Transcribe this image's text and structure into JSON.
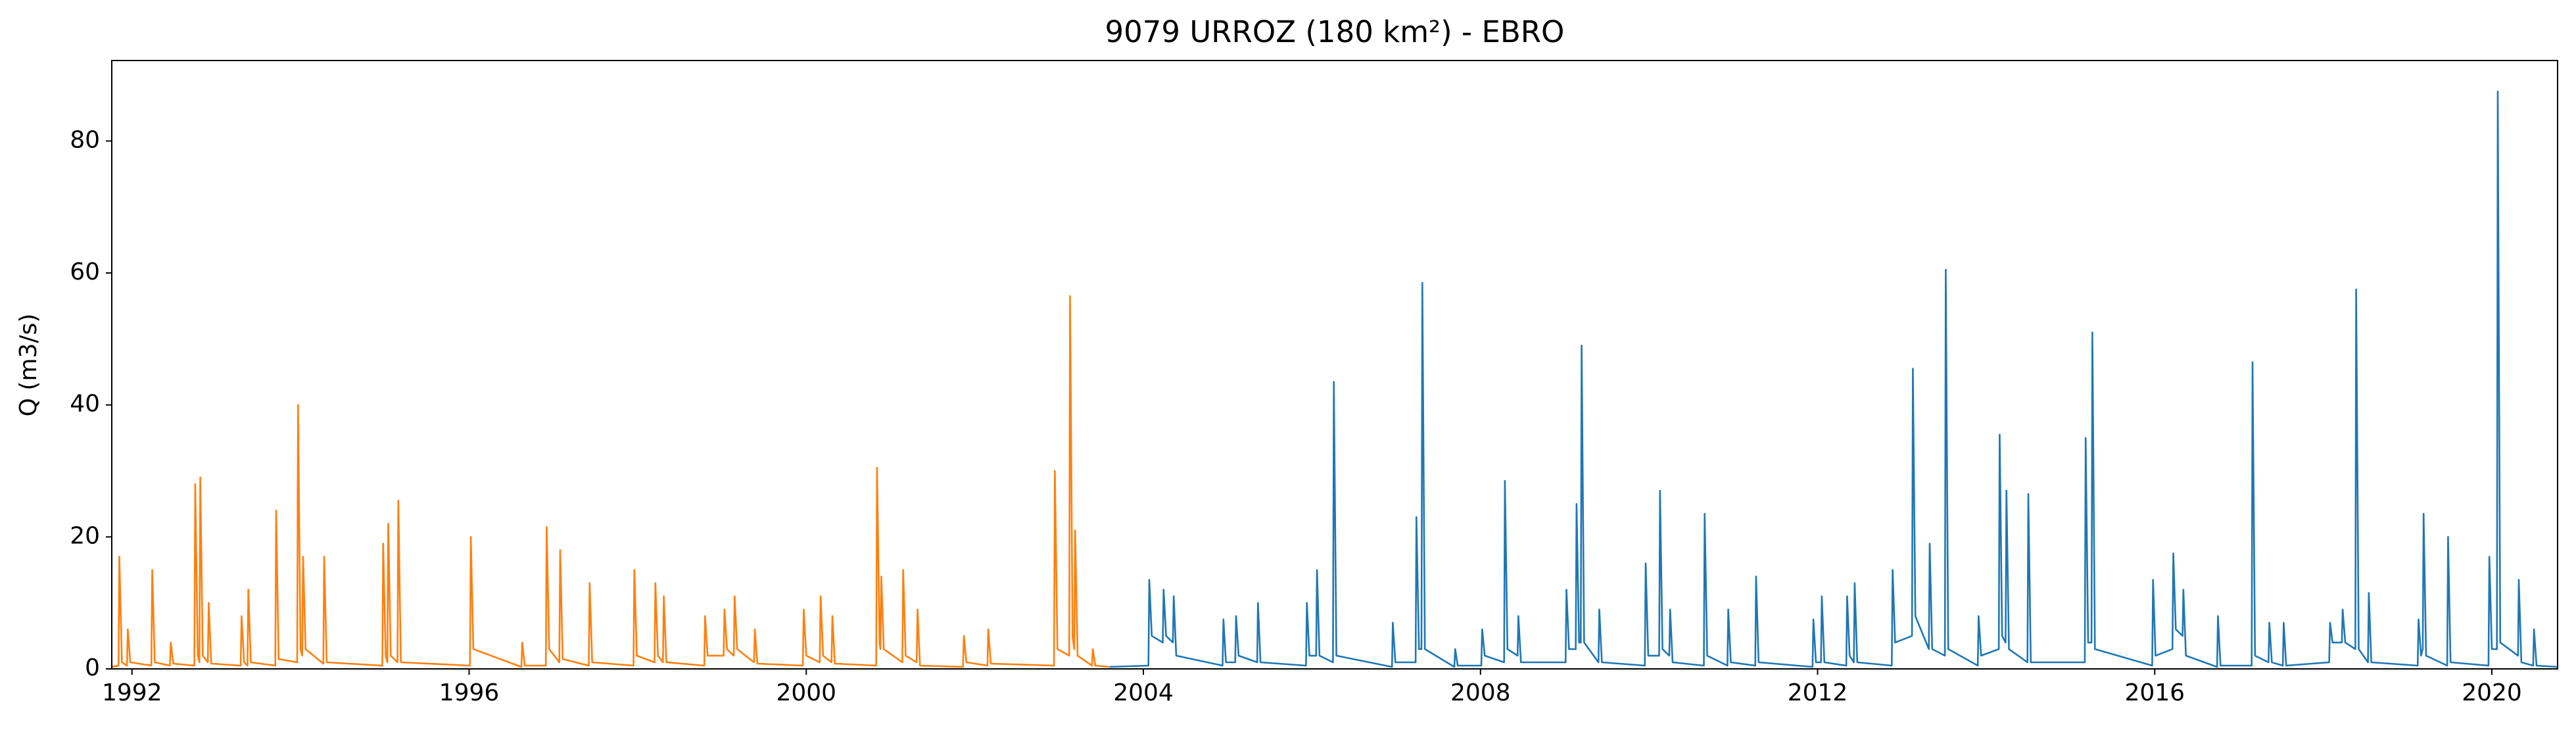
{
  "chart_data": {
    "type": "line",
    "title": "9079 URROZ (180 km²) - EBRO",
    "ylabel": "Q (m3/s)",
    "xlim": [
      1991.76,
      2020.78
    ],
    "ylim": [
      0,
      92.2
    ],
    "xticks": [
      1992,
      1996,
      2000,
      2004,
      2008,
      2012,
      2016,
      2020
    ],
    "yticks": [
      0,
      20,
      40,
      60,
      80
    ],
    "grid": false,
    "series": [
      {
        "color": "#ff7f0e",
        "x": [
          1991.76,
          1991.84,
          1991.85,
          1991.88,
          1991.94,
          1991.95,
          1991.98,
          1992.23,
          1992.24,
          1992.27,
          1992.45,
          1992.46,
          1992.49,
          1992.74,
          1992.75,
          1992.78,
          1992.8,
          1992.81,
          1992.84,
          1992.9,
          1992.91,
          1992.94,
          1993.29,
          1993.3,
          1993.33,
          1993.37,
          1993.38,
          1993.41,
          1993.7,
          1993.71,
          1993.74,
          1993.96,
          1993.97,
          1994.0,
          1994.02,
          1994.03,
          1994.06,
          1994.27,
          1994.28,
          1994.31,
          1994.97,
          1994.98,
          1995.01,
          1995.03,
          1995.04,
          1995.07,
          1995.15,
          1995.16,
          1995.19,
          1996.01,
          1996.02,
          1996.05,
          1996.62,
          1996.63,
          1996.66,
          1996.91,
          1996.92,
          1996.95,
          1997.07,
          1997.08,
          1997.11,
          1997.42,
          1997.43,
          1997.46,
          1997.95,
          1997.96,
          1997.99,
          1998.2,
          1998.21,
          1998.24,
          1998.3,
          1998.31,
          1998.34,
          1998.79,
          1998.8,
          1998.83,
          1999.02,
          1999.03,
          1999.06,
          1999.14,
          1999.15,
          1999.18,
          1999.38,
          1999.39,
          1999.42,
          1999.96,
          1999.97,
          2000.0,
          2000.16,
          2000.17,
          2000.2,
          2000.3,
          2000.31,
          2000.34,
          2000.83,
          2000.84,
          2000.87,
          2000.88,
          2000.89,
          2000.92,
          2001.14,
          2001.15,
          2001.18,
          2001.31,
          2001.32,
          2001.35,
          2001.86,
          2001.87,
          2001.9,
          2002.15,
          2002.16,
          2002.19,
          2002.94,
          2002.95,
          2002.98,
          2003.12,
          2003.13,
          2003.16,
          2003.18,
          2003.19,
          2003.22,
          2003.39,
          2003.4,
          2003.43,
          2003.6
        ],
        "values": [
          0.3,
          0.5,
          17,
          1,
          0.5,
          6,
          1,
          0.5,
          15,
          1,
          0.5,
          4,
          0.8,
          0.5,
          28,
          2,
          1,
          29,
          2,
          1,
          10,
          0.8,
          0.5,
          8,
          1,
          0.5,
          12,
          1,
          0.5,
          24,
          1.5,
          1,
          40,
          3,
          2,
          17,
          3,
          0.8,
          17,
          1,
          0.5,
          19,
          2,
          1,
          22,
          2,
          1,
          25.5,
          1,
          0.5,
          20,
          3,
          0.3,
          4,
          0.5,
          0.5,
          21.5,
          3,
          1,
          18,
          1.5,
          0.5,
          13,
          1,
          0.5,
          15,
          2,
          1,
          13,
          2,
          1,
          11,
          1,
          0.5,
          8,
          2,
          2,
          9,
          3,
          2,
          11,
          3,
          1,
          6,
          0.8,
          0.5,
          9,
          2,
          1,
          11,
          2,
          1,
          8,
          0.8,
          0.5,
          30.5,
          4,
          3,
          14,
          3,
          1,
          15,
          2,
          1,
          9,
          0.5,
          0.3,
          5,
          1,
          0.5,
          6,
          0.8,
          0.5,
          30,
          3,
          2,
          56.5,
          5,
          3,
          21,
          2,
          0.5,
          3,
          0.5,
          0.3
        ]
      },
      {
        "color": "#1f77b4",
        "x": [
          2003.6,
          2004.06,
          2004.07,
          2004.1,
          2004.23,
          2004.24,
          2004.27,
          2004.35,
          2004.36,
          2004.39,
          2004.94,
          2004.95,
          2004.98,
          2005.09,
          2005.1,
          2005.13,
          2005.35,
          2005.36,
          2005.39,
          2005.93,
          2005.94,
          2005.97,
          2006.05,
          2006.06,
          2006.09,
          2006.25,
          2006.26,
          2006.29,
          2006.95,
          2006.96,
          2006.99,
          2007.23,
          2007.24,
          2007.27,
          2007.3,
          2007.31,
          2007.34,
          2007.69,
          2007.7,
          2007.73,
          2008.01,
          2008.02,
          2008.05,
          2008.28,
          2008.29,
          2008.32,
          2008.44,
          2008.45,
          2008.48,
          2009.01,
          2009.02,
          2009.05,
          2009.13,
          2009.14,
          2009.17,
          2009.19,
          2009.2,
          2009.23,
          2009.4,
          2009.41,
          2009.44,
          2009.95,
          2009.96,
          2009.99,
          2010.12,
          2010.13,
          2010.16,
          2010.24,
          2010.25,
          2010.28,
          2010.65,
          2010.66,
          2010.69,
          2010.93,
          2010.94,
          2010.97,
          2011.26,
          2011.27,
          2011.3,
          2011.94,
          2011.95,
          2011.98,
          2012.04,
          2012.05,
          2012.08,
          2012.34,
          2012.35,
          2012.38,
          2012.43,
          2012.44,
          2012.47,
          2012.88,
          2012.89,
          2012.92,
          2013.12,
          2013.13,
          2013.16,
          2013.32,
          2013.33,
          2013.36,
          2013.51,
          2013.52,
          2013.55,
          2013.9,
          2013.91,
          2013.94,
          2014.15,
          2014.16,
          2014.19,
          2014.23,
          2014.24,
          2014.27,
          2014.49,
          2014.5,
          2014.53,
          2015.17,
          2015.18,
          2015.21,
          2015.25,
          2015.26,
          2015.29,
          2015.97,
          2015.98,
          2016.01,
          2016.21,
          2016.22,
          2016.25,
          2016.33,
          2016.34,
          2016.37,
          2016.74,
          2016.75,
          2016.78,
          2017.15,
          2017.16,
          2017.19,
          2017.35,
          2017.36,
          2017.39,
          2017.52,
          2017.53,
          2017.56,
          2018.07,
          2018.08,
          2018.11,
          2018.22,
          2018.23,
          2018.26,
          2018.38,
          2018.39,
          2018.42,
          2018.53,
          2018.54,
          2018.57,
          2019.12,
          2019.13,
          2019.16,
          2019.18,
          2019.19,
          2019.22,
          2019.47,
          2019.48,
          2019.51,
          2019.96,
          2019.97,
          2020.0,
          2020.06,
          2020.07,
          2020.1,
          2020.31,
          2020.32,
          2020.35,
          2020.49,
          2020.5,
          2020.53,
          2020.78
        ],
        "values": [
          0.3,
          0.5,
          13.5,
          5,
          4,
          12,
          5,
          4,
          11,
          2,
          0.5,
          7.5,
          1,
          1,
          8,
          2,
          1,
          10,
          1,
          0.5,
          10,
          2,
          2,
          15,
          2,
          1,
          43.5,
          2,
          0.3,
          7,
          1,
          1,
          23,
          3,
          3,
          58.5,
          3,
          0.3,
          3,
          0.5,
          0.5,
          6,
          2,
          1,
          28.5,
          3,
          2,
          8,
          1,
          1,
          12,
          3,
          3,
          25,
          4,
          4,
          49,
          4,
          1,
          9,
          1,
          0.5,
          16,
          2,
          2,
          27,
          3,
          2,
          9,
          1,
          0.5,
          23.5,
          2,
          0.5,
          9,
          1,
          0.5,
          14,
          1,
          0.3,
          7.5,
          1,
          1,
          11,
          1,
          0.5,
          11,
          2,
          1,
          13,
          1,
          0.5,
          15,
          4,
          5,
          45.5,
          8,
          3,
          19,
          3,
          2,
          60.5,
          3,
          0.5,
          8,
          2,
          3,
          35.5,
          5,
          4,
          27,
          3,
          1,
          26.5,
          1,
          1,
          35,
          4,
          4,
          51,
          3,
          0.5,
          13.5,
          2,
          3,
          17.5,
          6,
          5,
          12,
          2,
          0.3,
          8,
          0.5,
          0.5,
          46.5,
          2,
          1,
          7,
          1,
          0.5,
          7,
          0.5,
          1,
          7,
          4,
          4,
          9,
          4,
          3,
          57.5,
          3,
          1,
          11.5,
          1,
          0.5,
          7.5,
          2,
          3,
          23.5,
          2,
          0.5,
          20,
          1,
          0.5,
          17,
          3,
          3,
          87.5,
          4,
          2,
          13.5,
          1,
          0.5,
          6,
          0.5,
          0.3
        ]
      }
    ]
  }
}
